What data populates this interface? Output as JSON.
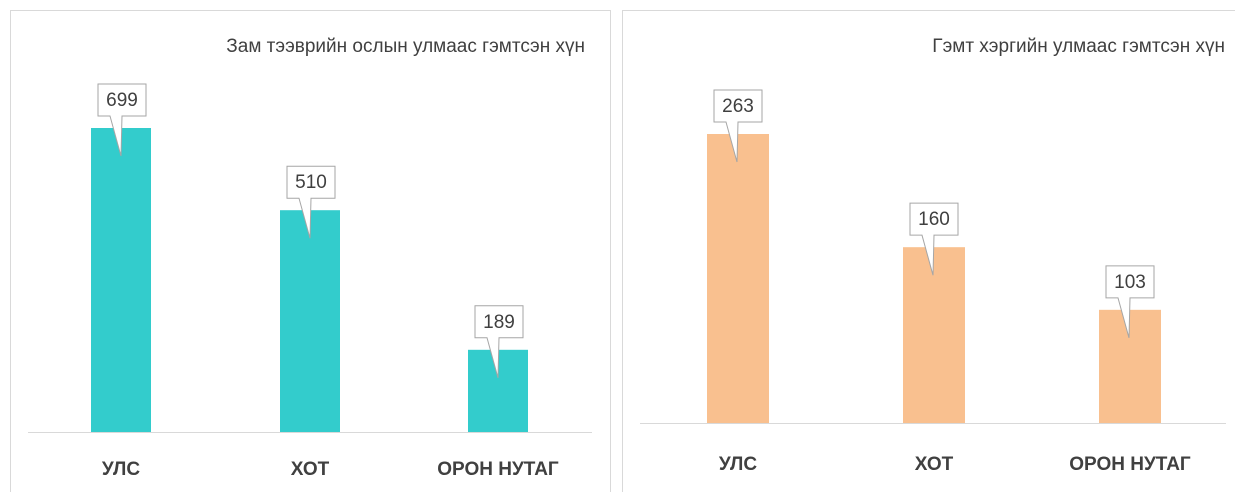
{
  "chart_data": [
    {
      "type": "bar",
      "title": "Зам тээврийн ослын улмаас гэмтсэн хүн",
      "categories": [
        "УЛС",
        "ХОТ",
        "ОРОН НУТАГ"
      ],
      "values": [
        699,
        510,
        189
      ],
      "color": "#33cccc"
    },
    {
      "type": "bar",
      "title": "Гэмт хэргийн улмаас гэмтсэн хүн",
      "categories": [
        "УЛС",
        "ХОТ",
        "ОРОН НУТАГ"
      ],
      "values": [
        263,
        160,
        103
      ],
      "color": "#f9c08f"
    }
  ]
}
